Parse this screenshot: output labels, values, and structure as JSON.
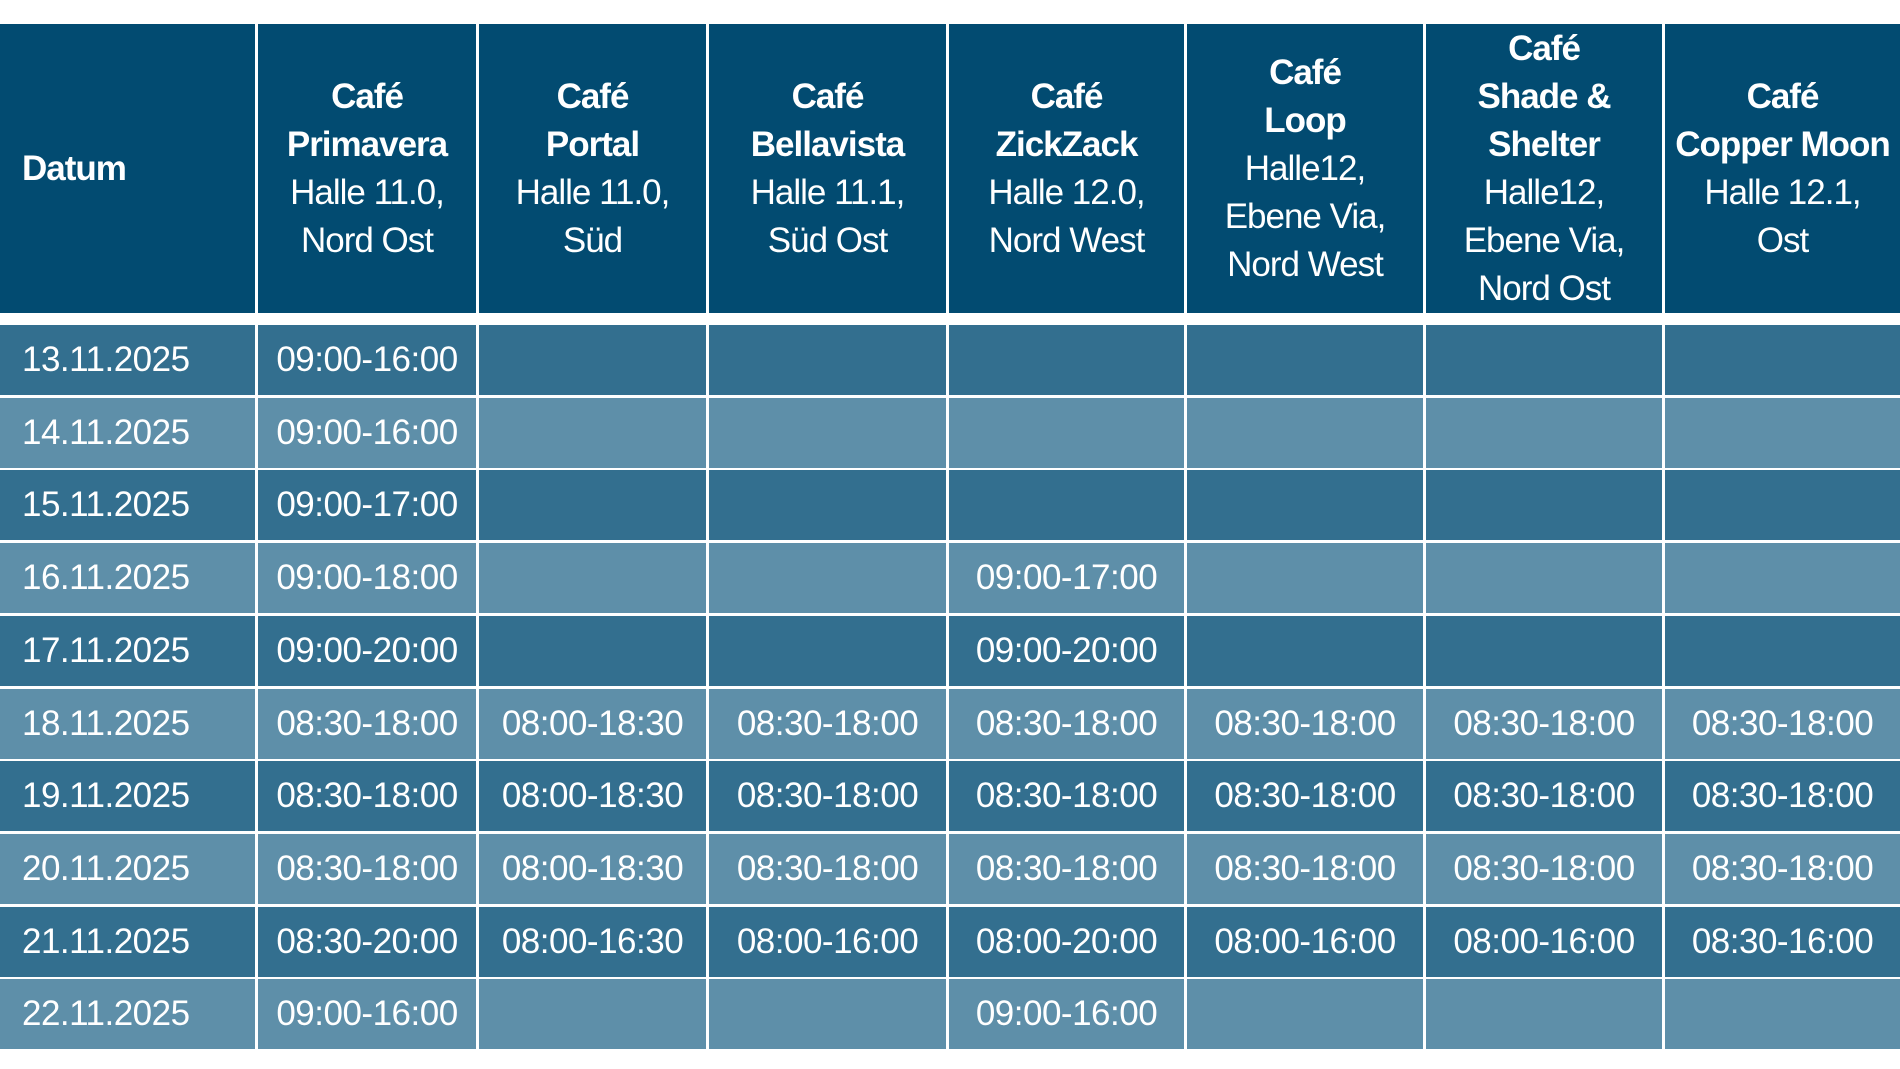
{
  "header": {
    "datum": "Datum",
    "cafes": [
      {
        "name": [
          "Café",
          "Primavera"
        ],
        "location": [
          "Halle 11.0,",
          "Nord Ost"
        ]
      },
      {
        "name": [
          "Café",
          "Portal"
        ],
        "location": [
          "Halle 11.0,",
          "Süd"
        ]
      },
      {
        "name": [
          "Café",
          "Bellavista"
        ],
        "location": [
          "Halle 11.1,",
          "Süd Ost"
        ]
      },
      {
        "name": [
          "Café",
          "ZickZack"
        ],
        "location": [
          "Halle 12.0,",
          "Nord West"
        ]
      },
      {
        "name": [
          "Café",
          "Loop"
        ],
        "location": [
          "Halle12,",
          "Ebene Via,",
          "Nord West"
        ]
      },
      {
        "name": [
          "Café",
          "Shade &",
          "Shelter"
        ],
        "location": [
          "Halle12,",
          "Ebene Via,",
          "Nord Ost"
        ]
      },
      {
        "name": [
          "Café",
          "Copper Moon"
        ],
        "location": [
          "Halle 12.1,",
          "Ost"
        ]
      }
    ]
  },
  "colors": {
    "header": "#024b71",
    "row_dark": "#336f8f",
    "row_light": "#5e8fa9"
  },
  "rows": [
    {
      "date": "13.11.2025",
      "times": [
        "09:00-16:00",
        "",
        "",
        "",
        "",
        "",
        ""
      ]
    },
    {
      "date": "14.11.2025",
      "times": [
        "09:00-16:00",
        "",
        "",
        "",
        "",
        "",
        ""
      ]
    },
    {
      "date": "15.11.2025",
      "times": [
        "09:00-17:00",
        "",
        "",
        "",
        "",
        "",
        ""
      ]
    },
    {
      "date": "16.11.2025",
      "times": [
        "09:00-18:00",
        "",
        "",
        "09:00-17:00",
        "",
        "",
        ""
      ]
    },
    {
      "date": "17.11.2025",
      "times": [
        "09:00-20:00",
        "",
        "",
        "09:00-20:00",
        "",
        "",
        ""
      ]
    },
    {
      "date": "18.11.2025",
      "times": [
        "08:30-18:00",
        "08:00-18:30",
        "08:30-18:00",
        "08:30-18:00",
        "08:30-18:00",
        "08:30-18:00",
        "08:30-18:00"
      ]
    },
    {
      "date": "19.11.2025",
      "times": [
        "08:30-18:00",
        "08:00-18:30",
        "08:30-18:00",
        "08:30-18:00",
        "08:30-18:00",
        "08:30-18:00",
        "08:30-18:00"
      ]
    },
    {
      "date": "20.11.2025",
      "times": [
        "08:30-18:00",
        "08:00-18:30",
        "08:30-18:00",
        "08:30-18:00",
        "08:30-18:00",
        "08:30-18:00",
        "08:30-18:00"
      ]
    },
    {
      "date": "21.11.2025",
      "times": [
        "08:30-20:00",
        "08:00-16:30",
        "08:00-16:00",
        "08:00-20:00",
        "08:00-16:00",
        "08:00-16:00",
        "08:30-16:00"
      ]
    },
    {
      "date": "22.11.2025",
      "times": [
        "09:00-16:00",
        "",
        "",
        "09:00-16:00",
        "",
        "",
        ""
      ]
    }
  ]
}
